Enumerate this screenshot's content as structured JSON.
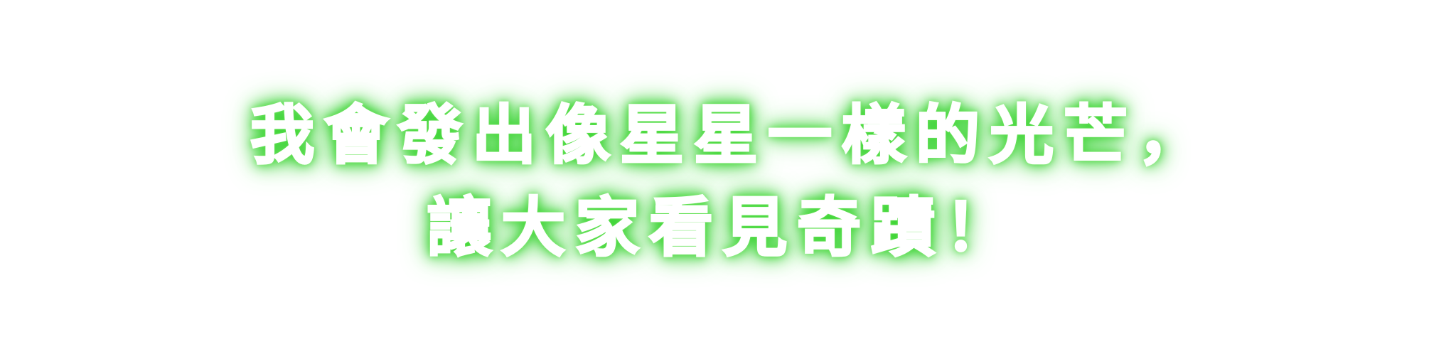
{
  "caption": {
    "line1": "我會發出像星星一樣的光芒，",
    "line2": "讓大家看見奇蹟！"
  },
  "colors": {
    "text": "#ffffff",
    "glow": "#2fcf2a",
    "background": "#ffffff"
  }
}
